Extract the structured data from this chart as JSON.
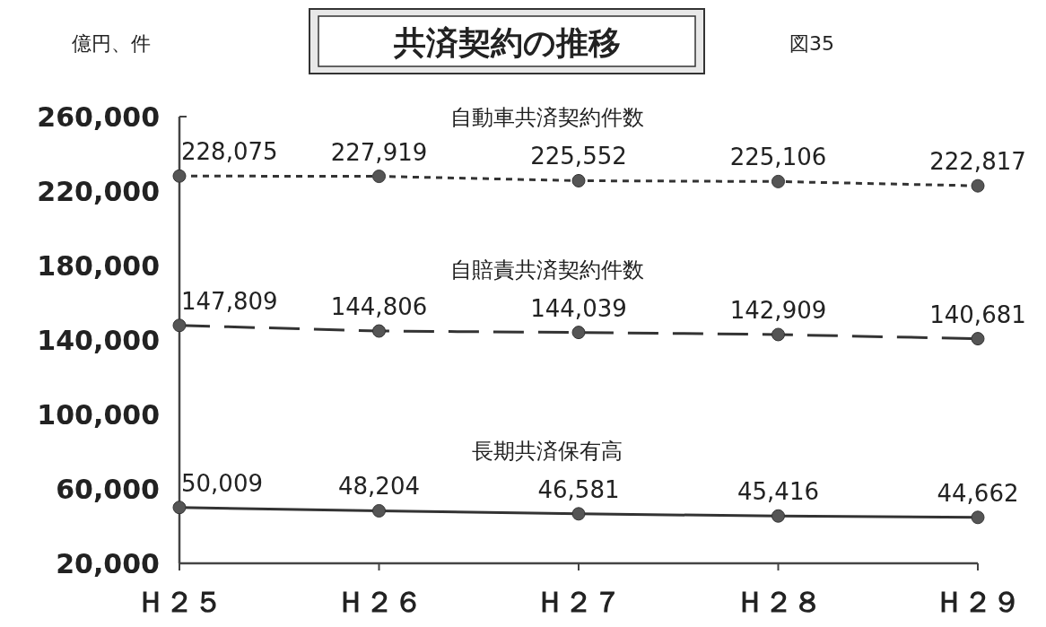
{
  "chart_data": {
    "type": "line",
    "title": "共済契約の推移",
    "ylabel": "億円、件",
    "annotations": [
      "図35"
    ],
    "categories": [
      "Ｈ２５",
      "Ｈ２６",
      "Ｈ２７",
      "Ｈ２８",
      "Ｈ２９"
    ],
    "ylim": [
      20000,
      260000
    ],
    "yticks": [
      {
        "value": 20000,
        "label": "20,000"
      },
      {
        "value": 60000,
        "label": "60,000"
      },
      {
        "value": 100000,
        "label": "100,000"
      },
      {
        "value": 140000,
        "label": "140,000"
      },
      {
        "value": 180000,
        "label": "180,000"
      },
      {
        "value": 220000,
        "label": "220,000"
      },
      {
        "value": 260000,
        "label": "260,000"
      }
    ],
    "series": [
      {
        "name": "自動車共済契約件数",
        "color": "#333333",
        "line_style": "dotted",
        "values": [
          228075,
          227919,
          225552,
          225106,
          222817
        ],
        "value_labels": [
          "228,075",
          "227,919",
          "225,552",
          "225,106",
          "222,817"
        ]
      },
      {
        "name": "自賠責共済契約件数",
        "color": "#333333",
        "line_style": "dashed",
        "values": [
          147809,
          144806,
          144039,
          142909,
          140681
        ],
        "value_labels": [
          "147,809",
          "144,806",
          "144,039",
          "142,909",
          "140,681"
        ]
      },
      {
        "name": "長期共済保有高",
        "color": "#333333",
        "line_style": "solid",
        "values": [
          50009,
          48204,
          46581,
          45416,
          44662
        ],
        "value_labels": [
          "50,009",
          "48,204",
          "46,581",
          "45,416",
          "44,662"
        ]
      }
    ],
    "marker": "circle",
    "grid": false
  }
}
